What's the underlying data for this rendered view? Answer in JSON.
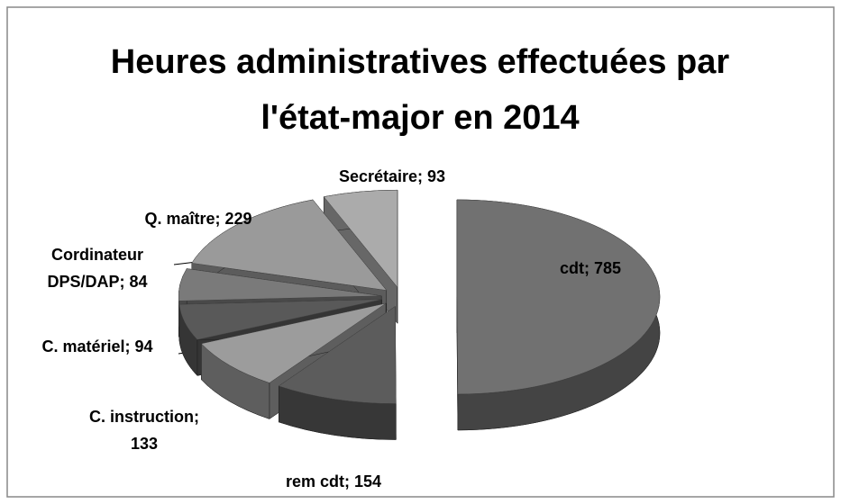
{
  "chart_data": {
    "type": "pie3d",
    "title": "Heures administratives effectuées par l'état-major en 2014",
    "categories": [
      "cdt",
      "rem cdt",
      "C. instruction",
      "C. matériel",
      "Cordinateur DPS/DAP",
      "Q. maître",
      "Secrétaire"
    ],
    "values": [
      785,
      154,
      133,
      94,
      84,
      229,
      93
    ],
    "colors": [
      "#717171",
      "#5c5c5c",
      "#9c9c9c",
      "#595959",
      "#7a7a7a",
      "#9a9a9a",
      "#ababab"
    ],
    "label_separator": "; "
  }
}
